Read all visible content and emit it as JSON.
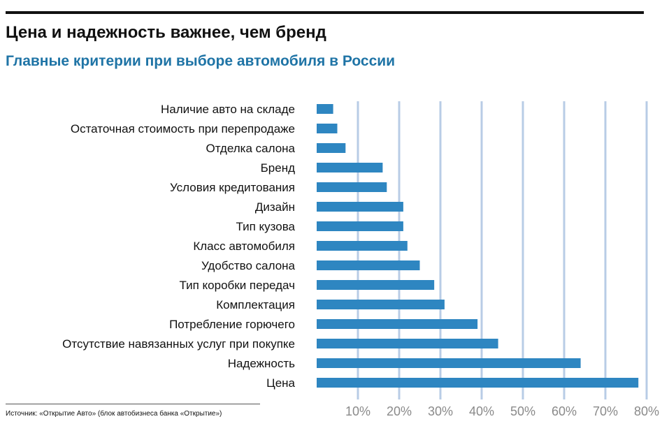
{
  "title": "Цена и надежность важнее, чем бренд",
  "subtitle": "Главные критерии при выборе автомобиля в России",
  "source": "Источник: «Открытие Авто» (блок автобизнеса банка «Открытие»)",
  "colors": {
    "bar": "#2e86c1",
    "grid": "#b8cce6",
    "subtitle": "#1f74a6",
    "ticks": "#8a8a8a"
  },
  "chart_data": {
    "type": "bar",
    "orientation": "horizontal",
    "categories": [
      "Наличие авто на складе",
      "Остаточная стоимость при перепродаже",
      "Отделка салона",
      "Бренд",
      "Условия кредитования",
      "Дизайн",
      "Тип кузова",
      "Класс автомобиля",
      "Удобство салона",
      "Тип коробки передач",
      "Комплектация",
      "Потребление горючего",
      "Отсутствие навязанных услуг при покупке",
      "Надежность",
      "Цена"
    ],
    "values": [
      4,
      5,
      7,
      16,
      17,
      21,
      21,
      22,
      25,
      28.5,
      31,
      39,
      44,
      64,
      78
    ],
    "xlim": [
      0,
      80
    ],
    "xticks": [
      "10%",
      "20%",
      "30%",
      "40%",
      "50%",
      "60%",
      "70%",
      "80%"
    ],
    "xtick_values": [
      10,
      20,
      30,
      40,
      50,
      60,
      70,
      80
    ],
    "grid": "vertical",
    "title": "Цена и надежность важнее, чем бренд",
    "subtitle": "Главные критерии при выборе автомобиля в России"
  }
}
